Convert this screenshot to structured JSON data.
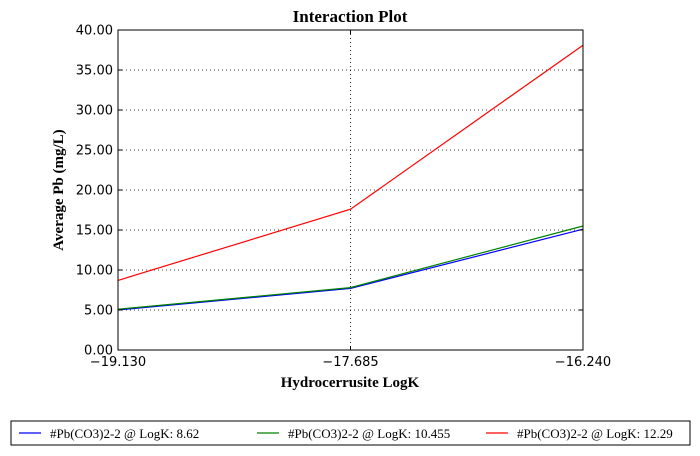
{
  "chart_data": {
    "type": "line",
    "title": "Interaction Plot",
    "xlabel": "Hydrocerrusite LogK",
    "ylabel": "Average Pb (mg/L)",
    "x": [
      -19.13,
      -17.685,
      -16.24
    ],
    "x_tick_labels": [
      "−19.130",
      "−17.685",
      "−16.240"
    ],
    "xlim": [
      -19.13,
      -16.24
    ],
    "ylim": [
      0,
      40
    ],
    "y_ticks": [
      0,
      5,
      10,
      15,
      20,
      25,
      30,
      35,
      40
    ],
    "y_tick_labels": [
      "0.00",
      "5.00",
      "10.00",
      "15.00",
      "20.00",
      "25.00",
      "30.00",
      "35.00",
      "40.00"
    ],
    "grid": true,
    "legend_placement": "bottom",
    "series": [
      {
        "name": "#Pb(CO3)2-2 @ LogK: 8.62",
        "color": "#0000ff",
        "values": [
          5.0,
          7.7,
          15.1
        ]
      },
      {
        "name": "#Pb(CO3)2-2 @ LogK: 10.455",
        "color": "#008000",
        "values": [
          5.1,
          7.8,
          15.5
        ]
      },
      {
        "name": "#Pb(CO3)2-2 @ LogK: 12.29",
        "color": "#ff0000",
        "values": [
          8.7,
          17.6,
          38.1
        ]
      }
    ]
  }
}
